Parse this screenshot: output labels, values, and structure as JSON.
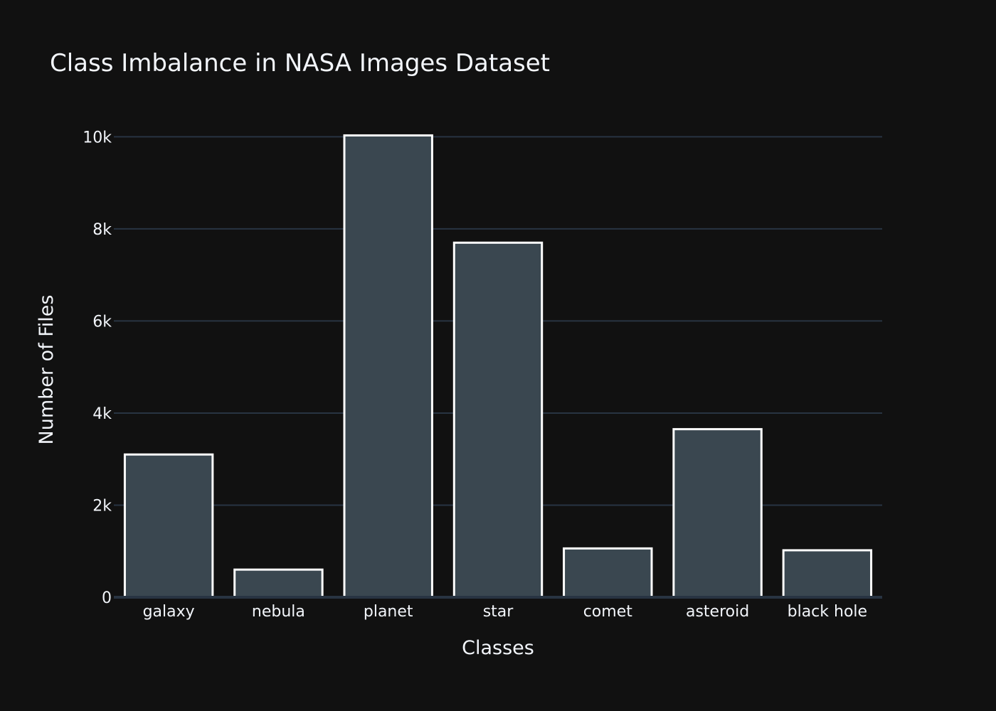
{
  "chart_data": {
    "type": "bar",
    "title": "Class Imbalance in NASA Images Dataset",
    "xlabel": "Classes",
    "ylabel": "Number of Files",
    "categories": [
      "galaxy",
      "nebula",
      "planet",
      "star",
      "comet",
      "asteroid",
      "black hole"
    ],
    "values": [
      3100,
      600,
      10030,
      7700,
      1060,
      3650,
      1020
    ],
    "ylim": [
      0,
      10500
    ],
    "yticks": [
      0,
      2000,
      4000,
      6000,
      8000,
      10000
    ],
    "ytick_labels": [
      "0",
      "2k",
      "4k",
      "6k",
      "8k",
      "10k"
    ],
    "grid": true,
    "legend": false,
    "colors": {
      "background": "#111111",
      "bar_fill": "#3a4750",
      "bar_outline": "#ffffff",
      "grid": "#283442",
      "text": "#f2f5fa"
    }
  }
}
